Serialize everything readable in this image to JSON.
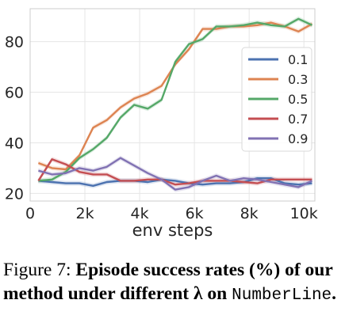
{
  "chart_data": {
    "type": "line",
    "title": "",
    "xlabel": "env steps",
    "ylabel": "",
    "xlim": [
      0,
      10400
    ],
    "ylim": [
      17,
      93
    ],
    "x_ticks": [
      0,
      2000,
      4000,
      6000,
      8000,
      10000
    ],
    "x_tick_labels": [
      "0",
      "2k",
      "4k",
      "6k",
      "8k",
      "10k"
    ],
    "y_ticks": [
      20,
      40,
      60,
      80
    ],
    "y_tick_labels": [
      "20",
      "40",
      "60",
      "80"
    ],
    "grid": true,
    "legend_position": "right",
    "x": [
      300,
      800,
      1300,
      1800,
      2300,
      2800,
      3300,
      3800,
      4300,
      4800,
      5300,
      5800,
      6300,
      6800,
      7300,
      7800,
      8300,
      8800,
      9300,
      9800,
      10300
    ],
    "series": [
      {
        "name": "0.1",
        "color": "#4c72b0",
        "values": [
          25,
          24.5,
          24,
          24,
          23,
          24.5,
          25,
          25,
          24.5,
          25.5,
          25,
          24,
          23.5,
          24,
          24,
          24.5,
          26,
          26,
          24,
          23.5,
          24
        ]
      },
      {
        "name": "0.3",
        "color": "#dd8452",
        "values": [
          32,
          30,
          29.5,
          35,
          46,
          49,
          54,
          57.5,
          59.5,
          62.5,
          71,
          77,
          85,
          85,
          86,
          86,
          86.5,
          87.5,
          86,
          84,
          87
        ]
      },
      {
        "name": "0.5",
        "color": "#55a868",
        "values": [
          25,
          25.5,
          28.5,
          34,
          37.5,
          42,
          50,
          55,
          53.5,
          57,
          72,
          79,
          81,
          86,
          86,
          86.5,
          87.5,
          86.5,
          86,
          89,
          86.5
        ]
      },
      {
        "name": "0.7",
        "color": "#c44e52",
        "values": [
          25,
          33.5,
          31.5,
          28.5,
          27.5,
          27.5,
          25,
          25,
          25.5,
          25.5,
          23.5,
          24,
          25,
          25,
          25,
          24.5,
          24,
          25.5,
          25.5,
          25.5,
          25.5
        ]
      },
      {
        "name": "0.9",
        "color": "#8172b3",
        "values": [
          29,
          27.5,
          28,
          30,
          29,
          30.5,
          34,
          31,
          28,
          25.5,
          21.5,
          22.5,
          25,
          27,
          25,
          26,
          25.5,
          24.5,
          23.5,
          22.5,
          25
        ]
      }
    ]
  },
  "caption": {
    "prefix": "Figure 7: ",
    "bold_text": "Episode success rates (%) of our method under different λ on",
    "env_name": "NumberLine",
    "end": "."
  }
}
